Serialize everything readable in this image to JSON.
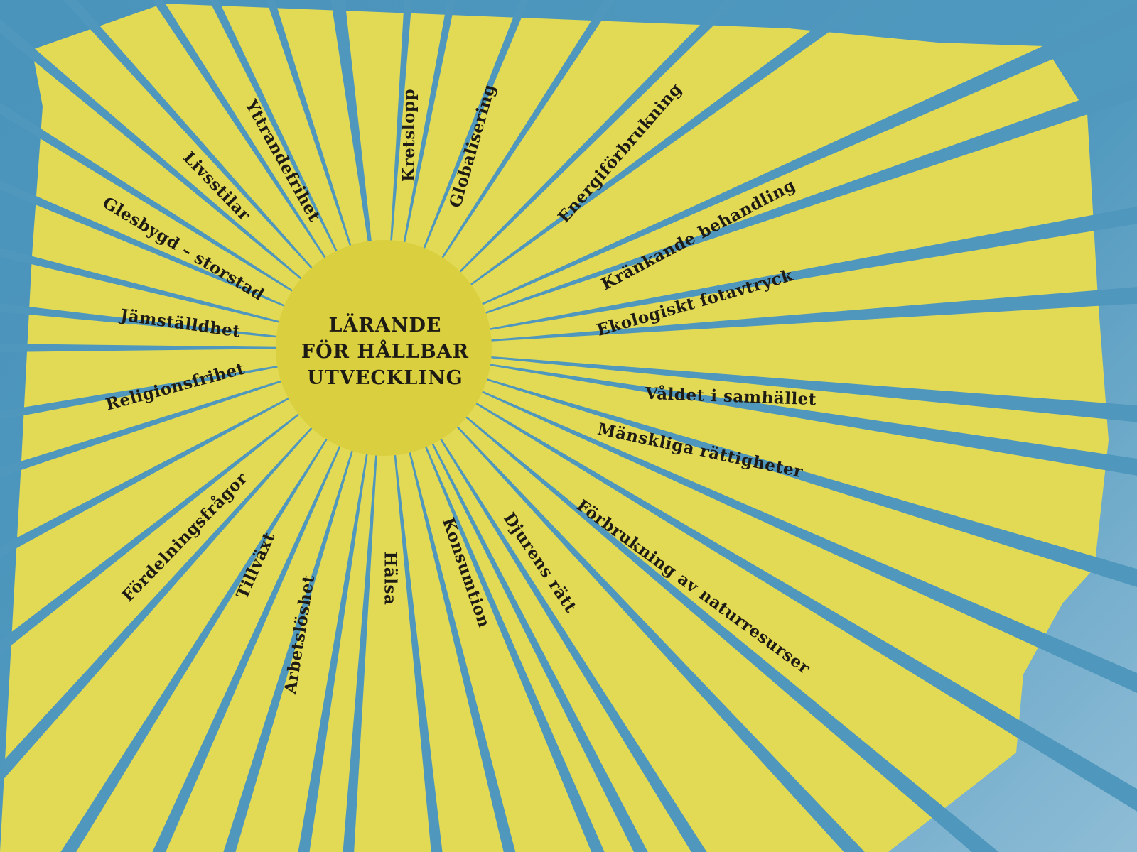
{
  "colors": {
    "background": "#4f97bd",
    "ray": "#e2da55",
    "center": "#d9cf3f",
    "text": "#1e1a14"
  },
  "center": {
    "lines": [
      "LÄRANDE",
      "FÖR HÅLLBAR",
      "UTVECKLING"
    ]
  },
  "topics": [
    "Kretslopp",
    "Globalisering",
    "Energiförbrukning",
    "Kränkande behandling",
    "Ekologiskt fotavtryck",
    "Våldet i samhället",
    "Mänskliga rättigheter",
    "Förbrukning av naturresurser",
    "Djurens rätt",
    "Konsumtion",
    "Hälsa",
    "Arbetslöshet",
    "Tillväxt",
    "Fördelningsfrågor",
    "Religionsfrihet",
    "Jämställdhet",
    "Glesbygd – storstad",
    "Livsstilar",
    "Yttrandefrihet"
  ]
}
